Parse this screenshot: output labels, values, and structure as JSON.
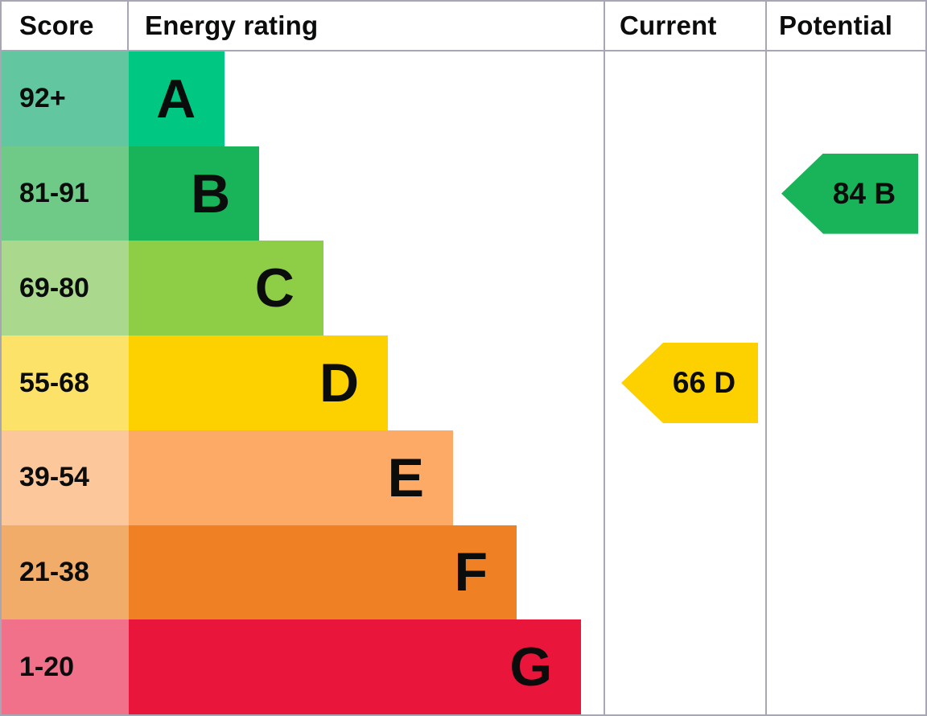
{
  "header": {
    "score": "Score",
    "energy_rating": "Energy rating",
    "current": "Current",
    "potential": "Potential"
  },
  "chart_data": {
    "type": "bar",
    "title": "Energy efficiency rating chart (EPC)",
    "legend_position": "none",
    "border_color": "#a6a7b2",
    "bands": [
      {
        "letter": "A",
        "score_range": "92+",
        "bar_color": "#00c781",
        "score_bg": "#62c7a0",
        "bar_fraction": 0.202
      },
      {
        "letter": "B",
        "score_range": "81-91",
        "bar_color": "#19b459",
        "score_bg": "#6fc987",
        "bar_fraction": 0.275
      },
      {
        "letter": "C",
        "score_range": "69-80",
        "bar_color": "#8dce46",
        "score_bg": "#aad98e",
        "bar_fraction": 0.41
      },
      {
        "letter": "D",
        "score_range": "55-68",
        "bar_color": "#fdd100",
        "score_bg": "#fde269",
        "bar_fraction": 0.546
      },
      {
        "letter": "E",
        "score_range": "39-54",
        "bar_color": "#fcaa65",
        "score_bg": "#fcc79b",
        "bar_fraction": 0.683
      },
      {
        "letter": "F",
        "score_range": "21-38",
        "bar_color": "#ef8023",
        "score_bg": "#f2ac69",
        "bar_fraction": 0.817
      },
      {
        "letter": "G",
        "score_range": "1-20",
        "bar_color": "#e9153b",
        "score_bg": "#f1708a",
        "bar_fraction": 0.953
      }
    ],
    "current": {
      "value": 66,
      "band": "D",
      "label": "66 D",
      "color": "#fdd100"
    },
    "potential": {
      "value": 84,
      "band": "B",
      "label": "84 B",
      "color": "#19b459"
    }
  }
}
